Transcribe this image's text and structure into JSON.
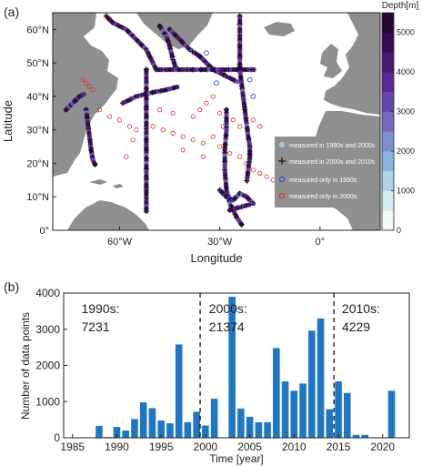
{
  "chart_data": [
    {
      "type": "scatter",
      "panel_label": "(a)",
      "xlabel": "Longitude",
      "ylabel": "Latitude",
      "xlim": [
        -80,
        18
      ],
      "ylim": [
        0,
        65
      ],
      "x_ticks": [
        {
          "value": -60,
          "label": "60°W"
        },
        {
          "value": -30,
          "label": "30°W"
        },
        {
          "value": 0,
          "label": "0°"
        }
      ],
      "y_ticks": [
        {
          "value": 0,
          "label": "0°"
        },
        {
          "value": 10,
          "label": "10°N"
        },
        {
          "value": 20,
          "label": "20°N"
        },
        {
          "value": 30,
          "label": "30°N"
        },
        {
          "value": 40,
          "label": "40°N"
        },
        {
          "value": 50,
          "label": "50°N"
        },
        {
          "value": 60,
          "label": "60°N"
        }
      ],
      "colorbar": {
        "title": "Depth[m]",
        "range": [
          0,
          5500
        ],
        "ticks": [
          0,
          1000,
          2000,
          3000,
          4000,
          5000
        ],
        "colors": [
          "#f1faf8",
          "#d4ecf2",
          "#acd3ea",
          "#86b3df",
          "#7a8fd2",
          "#7468c3",
          "#6a46b0",
          "#5a2897",
          "#4c1677",
          "#3a0b55",
          "#270636"
        ]
      },
      "legend": {
        "placement": "lower-right",
        "items": [
          {
            "marker": "filled-circle",
            "color": "#9ccbe7",
            "label": "measured in 1990s and 2000s"
          },
          {
            "marker": "plus",
            "color": "#111111",
            "label": "measured in 2000s and 2010s"
          },
          {
            "marker": "open-circle",
            "color": "#3a3ad8",
            "label": "measured only in 1990s"
          },
          {
            "marker": "open-circle",
            "color": "#d8342b",
            "label": "measured only in 2000s"
          }
        ]
      },
      "colors": {
        "land": "#8f8f8f",
        "ocean": "#ffffff"
      },
      "tracks": [
        {
          "name": "labrador_track",
          "points": [
            [
              -64,
              64
            ],
            [
              -62,
              62
            ],
            [
              -58,
              60
            ],
            [
              -56,
              58
            ],
            [
              -54,
              56
            ],
            [
              -52,
              54
            ],
            [
              -51,
              52
            ],
            [
              -50,
              50
            ],
            [
              -49,
              48
            ]
          ]
        },
        {
          "name": "west_meridional",
          "points": [
            [
              -70,
              36
            ],
            [
              -69.5,
              32
            ],
            [
              -69,
              28
            ],
            [
              -68.5,
              24
            ],
            [
              -68,
              21
            ],
            [
              -67,
              19
            ]
          ]
        },
        {
          "name": "west_diagonal",
          "points": [
            [
              -76,
              36
            ],
            [
              -74,
              38
            ],
            [
              -72,
              40
            ],
            [
              -70,
              41
            ]
          ]
        },
        {
          "name": "section_52W",
          "points": [
            [
              -52,
              48
            ],
            [
              -52,
              44
            ],
            [
              -52,
              40
            ],
            [
              -52,
              36
            ],
            [
              -52,
              32
            ],
            [
              -52,
              28
            ],
            [
              -52,
              24
            ],
            [
              -52,
              20
            ],
            [
              -52,
              16
            ],
            [
              -52,
              12
            ],
            [
              -52,
              8
            ],
            [
              -52,
              5
            ]
          ]
        },
        {
          "name": "gulfstream_track",
          "points": [
            [
              -59,
              38
            ],
            [
              -55,
              40
            ],
            [
              -51,
              41
            ],
            [
              -46,
              42
            ],
            [
              -42,
              43
            ]
          ]
        },
        {
          "name": "ovide_track",
          "points": [
            [
              -45,
              60
            ],
            [
              -42,
              57
            ],
            [
              -39,
              54
            ],
            [
              -36,
              52
            ],
            [
              -34,
              50
            ],
            [
              -32,
              48
            ],
            [
              -28,
              46
            ],
            [
              -24,
              44
            ]
          ]
        },
        {
          "name": "greenland_track",
          "points": [
            [
              -48,
              61
            ],
            [
              -46,
              58
            ],
            [
              -45,
              55
            ],
            [
              -44,
              51
            ],
            [
              -43,
              48
            ]
          ]
        },
        {
          "name": "zonal_48N",
          "points": [
            [
              -49,
              48
            ],
            [
              -44,
              48
            ],
            [
              -39,
              48
            ],
            [
              -34,
              48
            ],
            [
              -29,
              48
            ],
            [
              -24,
              48
            ],
            [
              -19,
              48
            ]
          ]
        },
        {
          "name": "iceland_track",
          "points": [
            [
              -24,
              64
            ],
            [
              -24,
              60
            ],
            [
              -24,
              56
            ],
            [
              -24,
              52
            ],
            [
              -24,
              48
            ]
          ]
        },
        {
          "name": "east_meridional",
          "points": [
            [
              -24,
              48
            ],
            [
              -23.5,
              44
            ],
            [
              -23,
              40
            ],
            [
              -22.5,
              36
            ],
            [
              -22,
              32
            ],
            [
              -21.5,
              28
            ],
            [
              -21,
              25
            ],
            [
              -21,
              22
            ],
            [
              -21.5,
              18
            ],
            [
              -22,
              14
            ]
          ]
        },
        {
          "name": "south_meridional",
          "points": [
            [
              -28,
              36
            ],
            [
              -28,
              30
            ],
            [
              -28.5,
              24
            ],
            [
              -28.5,
              18
            ],
            [
              -28,
              12
            ],
            [
              -27,
              8
            ],
            [
              -25,
              4
            ],
            [
              -23,
              1
            ]
          ]
        },
        {
          "name": "equatorial_cluster",
          "points": [
            [
              -30,
              12
            ],
            [
              -28,
              10
            ],
            [
              -26,
              9
            ],
            [
              -24,
              11
            ],
            [
              -22,
              10
            ],
            [
              -20,
              8
            ],
            [
              -27,
              6
            ],
            [
              -24,
              7
            ]
          ]
        }
      ],
      "red_only_2000s": [
        [
          -71,
          45
        ],
        [
          -70,
          44
        ],
        [
          -69,
          43
        ],
        [
          -68,
          42
        ],
        [
          -66,
          36
        ],
        [
          -63,
          34
        ],
        [
          -60,
          33
        ],
        [
          -57,
          31
        ],
        [
          -55,
          30
        ],
        [
          -50,
          31
        ],
        [
          -47,
          30
        ],
        [
          -44,
          29
        ],
        [
          -41,
          28
        ],
        [
          -38,
          27
        ],
        [
          -35,
          26
        ],
        [
          -32,
          28
        ],
        [
          -30,
          25
        ],
        [
          -27,
          23
        ],
        [
          -24,
          22
        ],
        [
          -22,
          20
        ],
        [
          -20,
          18
        ],
        [
          -18,
          17
        ],
        [
          -16,
          16
        ],
        [
          -14,
          15
        ],
        [
          -38,
          34
        ],
        [
          -36,
          36
        ],
        [
          -34,
          38
        ],
        [
          -32,
          40
        ],
        [
          -30,
          35
        ],
        [
          -26,
          33
        ],
        [
          -20,
          33
        ],
        [
          -18,
          31
        ],
        [
          -44,
          35
        ],
        [
          -48,
          36
        ],
        [
          -56,
          27
        ],
        [
          -58,
          22
        ],
        [
          -41,
          24
        ],
        [
          -35,
          22
        ],
        [
          -29,
          31
        ],
        [
          -24,
          31
        ]
      ],
      "blue_only_1990s": [
        [
          -36,
          52
        ],
        [
          -34,
          53
        ],
        [
          -29,
          47
        ],
        [
          -21,
          45
        ],
        [
          -20,
          40
        ],
        [
          -31,
          44
        ]
      ]
    },
    {
      "type": "bar",
      "panel_label": "(b)",
      "xlabel": "Time [year]",
      "ylabel": "Number of data points",
      "xlim": [
        1984,
        2023
      ],
      "ylim": [
        0,
        4000
      ],
      "x_ticks": [
        1985,
        1990,
        1995,
        2000,
        2005,
        2010,
        2015,
        2020
      ],
      "y_ticks": [
        0,
        1000,
        2000,
        3000,
        4000
      ],
      "bar_color": "#1f77c4",
      "categories": [
        1988,
        1989,
        1990,
        1991,
        1992,
        1993,
        1994,
        1995,
        1996,
        1997,
        1998,
        1999,
        2000,
        2001,
        2002,
        2003,
        2004,
        2005,
        2006,
        2007,
        2008,
        2009,
        2010,
        2011,
        2012,
        2013,
        2014,
        2015,
        2016,
        2017,
        2018,
        2019,
        2020,
        2021
      ],
      "values": [
        330,
        20,
        300,
        200,
        520,
        980,
        820,
        480,
        400,
        2580,
        430,
        720,
        340,
        1080,
        0,
        3900,
        810,
        580,
        430,
        430,
        2480,
        1560,
        1300,
        1500,
        2960,
        3300,
        790,
        1560,
        1240,
        80,
        80,
        0,
        0,
        1300
      ],
      "dividers": [
        1999.4,
        2014.5
      ],
      "annotations": [
        {
          "x": 1986,
          "line1": "1990s:",
          "line2": "7231"
        },
        {
          "x": 2000.4,
          "line1": "2000s:",
          "line2": "21374"
        },
        {
          "x": 2015.4,
          "line1": "2010s:",
          "line2": "4229"
        }
      ]
    }
  ]
}
